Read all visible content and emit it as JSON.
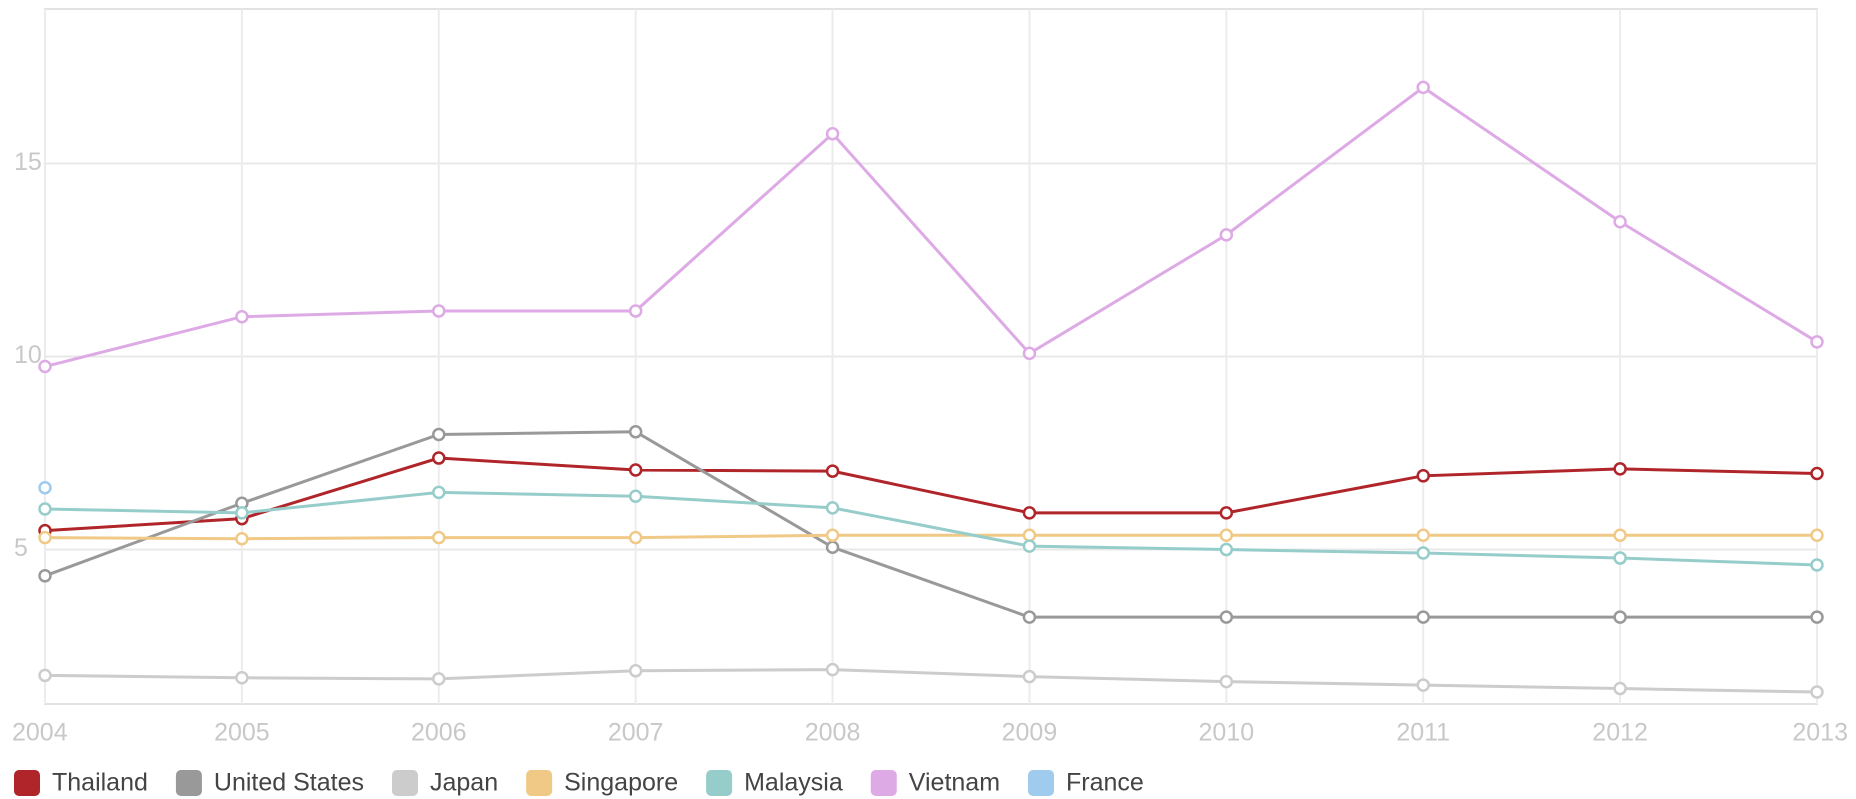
{
  "chart_data": {
    "type": "line",
    "x": [
      2004,
      2005,
      2006,
      2007,
      2008,
      2009,
      2010,
      2011,
      2012,
      2013
    ],
    "xlim": [
      2004,
      2013
    ],
    "xticks": [
      2004,
      2005,
      2006,
      2007,
      2008,
      2009,
      2010,
      2011,
      2012,
      2013
    ],
    "ylim": [
      1,
      19
    ],
    "yticks": [
      5,
      10,
      15
    ],
    "grid": true,
    "legend": "bottom-left",
    "series": [
      {
        "name": "Thailand",
        "color": "#b0252a",
        "values": [
          5.49,
          5.8,
          7.37,
          7.06,
          7.03,
          5.95,
          5.95,
          6.91,
          7.09,
          6.97
        ]
      },
      {
        "name": "United States",
        "color": "#999999",
        "values": [
          4.32,
          6.2,
          7.98,
          8.05,
          5.06,
          3.25,
          3.25,
          3.25,
          3.25,
          3.25
        ]
      },
      {
        "name": "Japan",
        "color": "#cccccc",
        "values": [
          1.74,
          1.68,
          1.65,
          1.86,
          1.89,
          1.71,
          1.58,
          1.49,
          1.4,
          1.31
        ]
      },
      {
        "name": "Singapore",
        "color": "#f0c987",
        "values": [
          5.31,
          5.28,
          5.31,
          5.31,
          5.37,
          5.37,
          5.37,
          5.37,
          5.37,
          5.37
        ]
      },
      {
        "name": "Malaysia",
        "color": "#96cdcb",
        "values": [
          6.05,
          5.95,
          6.48,
          6.38,
          6.08,
          5.09,
          5.0,
          4.91,
          4.78,
          4.6
        ]
      },
      {
        "name": "Vietnam",
        "color": "#deaae6",
        "values": [
          9.74,
          11.03,
          11.18,
          11.18,
          15.77,
          10.08,
          13.15,
          16.97,
          13.49,
          10.38
        ]
      },
      {
        "name": "France",
        "color": "#9ecbee",
        "values": [
          6.6,
          null,
          null,
          null,
          null,
          null,
          null,
          null,
          null,
          null
        ]
      }
    ]
  }
}
